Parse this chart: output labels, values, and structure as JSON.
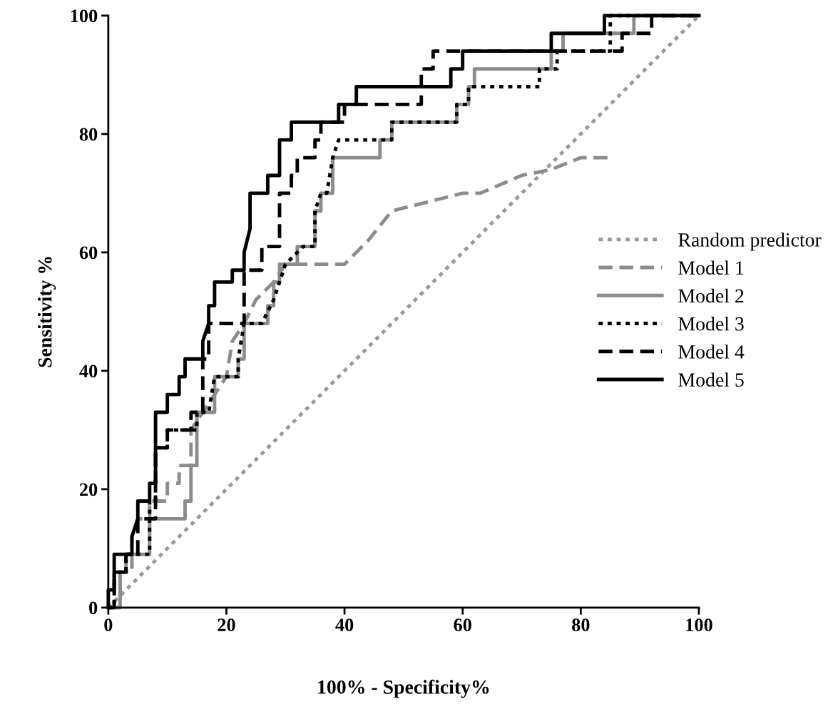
{
  "chart_data": {
    "type": "line",
    "xlabel": "100% - Specificity%",
    "ylabel": "Sensitivity %",
    "xlim": [
      0,
      100
    ],
    "ylim": [
      0,
      100
    ],
    "xticks": [
      0,
      20,
      40,
      60,
      80,
      100
    ],
    "yticks": [
      0,
      20,
      40,
      60,
      80,
      100
    ],
    "grid": false,
    "legend": "right",
    "marker": "none",
    "series": [
      {
        "name": "Random predictor",
        "color": "#999999",
        "line_style": "dotted",
        "x": [
          0,
          100
        ],
        "values": [
          0,
          100
        ]
      },
      {
        "name": "Model 1",
        "color": "#8c8c8c",
        "line_style": "dashed",
        "x": [
          0,
          2,
          2,
          4,
          4,
          5,
          7,
          7,
          10,
          10,
          12,
          12,
          14,
          14,
          16,
          18,
          20,
          21,
          23,
          25,
          28,
          30,
          31,
          40,
          44,
          48,
          60,
          63,
          70,
          75,
          80,
          85
        ],
        "values": [
          0,
          0,
          6,
          6,
          12,
          15,
          15,
          18,
          18,
          21,
          21,
          24,
          24,
          30,
          33,
          36,
          39,
          45,
          48,
          52,
          55,
          58,
          58,
          58,
          62,
          67,
          70,
          70,
          73,
          74,
          76,
          76
        ]
      },
      {
        "name": "Model 2",
        "color": "#8c8c8c",
        "line_style": "solid",
        "x": [
          0,
          2,
          2,
          3,
          3,
          7,
          7,
          13,
          13,
          14,
          14,
          15,
          15,
          18,
          18,
          22,
          22,
          23,
          23,
          27,
          27,
          28,
          28,
          29,
          29,
          32,
          32,
          35,
          35,
          36,
          36,
          38,
          38,
          46,
          46,
          48,
          48,
          59,
          59,
          61,
          61,
          62,
          62,
          75,
          75,
          77,
          77,
          89,
          89,
          100
        ],
        "values": [
          0,
          0,
          6,
          6,
          9,
          9,
          15,
          15,
          18,
          18,
          24,
          24,
          33,
          33,
          39,
          39,
          42,
          42,
          48,
          48,
          51,
          51,
          55,
          55,
          58,
          58,
          61,
          61,
          67,
          67,
          70,
          70,
          76,
          76,
          79,
          79,
          82,
          82,
          85,
          85,
          88,
          88,
          91,
          91,
          94,
          94,
          97,
          97,
          100,
          100
        ]
      },
      {
        "name": "Model 3",
        "color": "#000000",
        "line_style": "dotted",
        "x": [
          0,
          1,
          1,
          3,
          3,
          7,
          7,
          8,
          8,
          10,
          10,
          15,
          15,
          17,
          18,
          22,
          22,
          23,
          26,
          28,
          29,
          30,
          30,
          33,
          34,
          35,
          35,
          36,
          37,
          38,
          39,
          48,
          48,
          59,
          59,
          61,
          61,
          73,
          73,
          76,
          76,
          85,
          85,
          100
        ],
        "values": [
          0,
          0,
          6,
          6,
          9,
          9,
          18,
          18,
          27,
          27,
          30,
          30,
          33,
          33,
          39,
          39,
          42,
          48,
          48,
          52,
          55,
          58,
          58,
          61,
          61,
          61,
          67,
          70,
          70,
          76,
          79,
          79,
          82,
          82,
          85,
          85,
          88,
          88,
          91,
          91,
          94,
          94,
          100,
          100
        ]
      },
      {
        "name": "Model 4",
        "color": "#000000",
        "line_style": "dashed",
        "x": [
          0,
          1,
          1,
          3,
          3,
          5,
          5,
          8,
          8,
          10,
          10,
          14,
          14,
          16,
          16,
          17,
          17,
          23,
          23,
          26,
          26,
          29,
          29,
          31,
          31,
          32,
          32,
          35,
          35,
          36,
          36,
          40,
          40,
          53,
          53,
          55,
          55,
          87,
          87,
          92,
          92,
          100
        ],
        "values": [
          0,
          0,
          6,
          6,
          9,
          9,
          15,
          15,
          27,
          27,
          30,
          30,
          33,
          33,
          42,
          42,
          48,
          48,
          57,
          57,
          61,
          61,
          70,
          70,
          73,
          73,
          76,
          76,
          79,
          79,
          82,
          82,
          85,
          85,
          91,
          91,
          94,
          94,
          97,
          97,
          100,
          100
        ]
      },
      {
        "name": "Model 5",
        "color": "#000000",
        "line_style": "solid",
        "x": [
          0,
          0,
          1,
          1,
          4,
          4,
          5,
          5,
          7,
          7,
          8,
          8,
          10,
          10,
          12,
          12,
          13,
          13,
          16,
          16,
          17,
          17,
          18,
          18,
          21,
          21,
          23,
          23,
          24,
          24,
          27,
          27,
          29,
          29,
          31,
          31,
          39,
          39,
          42,
          42,
          58,
          58,
          60,
          60,
          75,
          75,
          84,
          84,
          100
        ],
        "values": [
          0,
          3,
          3,
          9,
          9,
          12,
          15,
          18,
          18,
          21,
          21,
          33,
          33,
          36,
          36,
          39,
          39,
          42,
          42,
          45,
          48,
          51,
          51,
          55,
          55,
          57,
          57,
          60,
          64,
          70,
          70,
          73,
          73,
          79,
          79,
          82,
          82,
          85,
          85,
          88,
          88,
          91,
          91,
          94,
          94,
          97,
          97,
          100,
          100
        ]
      }
    ]
  }
}
